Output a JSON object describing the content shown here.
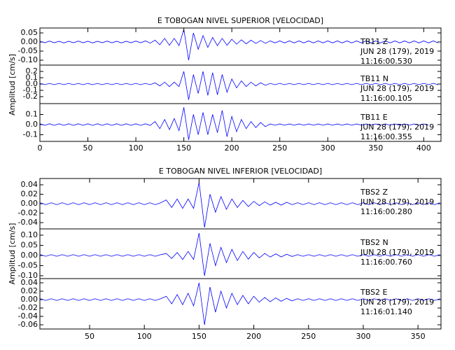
{
  "chart_data": [
    {
      "type": "line",
      "title": "E TOBOGAN NIVEL SUPERIOR [VELOCIDAD]",
      "ylabel": "Amplitud [cm/s]",
      "xlim": [
        0,
        418
      ],
      "xticks": [
        0,
        50,
        100,
        150,
        200,
        250,
        300,
        350,
        400
      ],
      "x": [
        0,
        5,
        10,
        15,
        20,
        25,
        30,
        35,
        40,
        45,
        50,
        55,
        60,
        65,
        70,
        75,
        80,
        85,
        90,
        95,
        100,
        105,
        110,
        115,
        120,
        125,
        130,
        135,
        140,
        145,
        150,
        155,
        160,
        165,
        170,
        175,
        180,
        185,
        190,
        195,
        200,
        205,
        210,
        215,
        220,
        225,
        230,
        235,
        240,
        245,
        250,
        255,
        260,
        265,
        270,
        275,
        280,
        285,
        290,
        295,
        300,
        305,
        310,
        315,
        320,
        325,
        330,
        335,
        340,
        345,
        350,
        355,
        360,
        365,
        370,
        375,
        380,
        385,
        390,
        395,
        400,
        405,
        410,
        415
      ],
      "panels": [
        {
          "ylim": [
            -0.127,
            0.077
          ],
          "yticks": [
            0.05,
            {
              "value": 0,
              "label": "0.00"
            },
            -0.05,
            {
              "value": -0.1,
              "label": "-0.10"
            }
          ],
          "labels": [
            "TB11   Z",
            "JUN 28 (179), 2019",
            "11:16:00.530"
          ],
          "series": [
            {
              "color": "#0000ff",
              "values": [
                0.004,
                -0.004,
                0.005,
                -0.004,
                0.004,
                -0.005,
                0.004,
                -0.004,
                0.005,
                -0.004,
                0.004,
                -0.005,
                0.004,
                -0.004,
                0.005,
                -0.004,
                0.004,
                -0.005,
                0.004,
                -0.004,
                0.005,
                -0.004,
                0.006,
                -0.006,
                0.01,
                -0.015,
                0.02,
                -0.018,
                0.02,
                -0.02,
                0.07,
                -0.1,
                0.05,
                -0.04,
                0.035,
                -0.03,
                0.025,
                -0.02,
                0.02,
                -0.018,
                0.015,
                -0.012,
                0.012,
                -0.01,
                0.01,
                -0.008,
                0.008,
                -0.007,
                0.006,
                -0.005,
                0.006,
                -0.005,
                0.006,
                -0.005,
                0.006,
                -0.005,
                0.006,
                -0.005,
                0.006,
                -0.005,
                0.006,
                -0.005,
                0.006,
                -0.005,
                0.006,
                -0.005,
                0.006,
                -0.005,
                0.006,
                -0.005,
                0.006,
                -0.005,
                0.006,
                -0.005,
                0.006,
                -0.005,
                0.006,
                -0.005,
                0.006,
                -0.005,
                0.006,
                -0.005,
                0.006,
                -0.005
              ]
            }
          ]
        },
        {
          "ylim": [
            -0.31,
            0.3
          ],
          "yticks": [
            0.2,
            0.1,
            {
              "value": 0,
              "label": "0.0"
            },
            -0.1,
            -0.2
          ],
          "labels": [
            "TB11   N",
            "JUN 28 (179), 2019",
            "11:16:00.105"
          ],
          "series": [
            {
              "color": "#0000ff",
              "values": [
                0.01,
                -0.01,
                0.01,
                -0.01,
                0.01,
                -0.01,
                0.01,
                -0.01,
                0.01,
                -0.01,
                0.01,
                -0.01,
                0.01,
                -0.01,
                0.01,
                -0.01,
                0.01,
                -0.01,
                0.01,
                -0.01,
                0.01,
                -0.01,
                0.01,
                -0.01,
                0.02,
                -0.03,
                0.03,
                -0.04,
                0.03,
                -0.04,
                0.2,
                -0.25,
                0.15,
                -0.15,
                0.2,
                -0.18,
                0.18,
                -0.17,
                0.15,
                -0.13,
                0.08,
                -0.06,
                0.05,
                -0.04,
                0.03,
                -0.03,
                0.02,
                -0.02,
                0.01,
                -0.01,
                0.01,
                -0.01,
                0.01,
                -0.01,
                0.01,
                -0.01,
                0.01,
                -0.01,
                0.01,
                -0.01,
                0.01,
                -0.01,
                0.01,
                -0.01,
                0.01,
                -0.01,
                0.01,
                -0.01,
                0.01,
                -0.01,
                0.01,
                -0.01,
                0.01,
                -0.01,
                0.01,
                -0.01,
                0.01,
                -0.01,
                0.01,
                -0.01,
                0.01,
                -0.01,
                0.01,
                -0.01
              ]
            }
          ]
        },
        {
          "ylim": [
            -0.166,
            0.207
          ],
          "yticks": [
            0.1,
            {
              "value": 0,
              "label": "0.0"
            },
            -0.1
          ],
          "labels": [
            "TB11   E",
            "JUN 28 (179), 2019",
            "11:16:00.355"
          ],
          "series": [
            {
              "color": "#0000ff",
              "values": [
                0.008,
                -0.008,
                0.008,
                -0.008,
                0.008,
                -0.008,
                0.008,
                -0.008,
                0.008,
                -0.008,
                0.008,
                -0.008,
                0.008,
                -0.008,
                0.008,
                -0.008,
                0.008,
                -0.008,
                0.008,
                -0.008,
                0.008,
                -0.008,
                0.008,
                -0.008,
                0.03,
                -0.04,
                0.05,
                -0.05,
                0.06,
                -0.06,
                0.17,
                -0.15,
                0.1,
                -0.1,
                0.12,
                -0.1,
                0.1,
                -0.08,
                0.14,
                -0.12,
                0.08,
                -0.07,
                0.05,
                -0.04,
                0.03,
                -0.03,
                0.02,
                -0.02,
                0.006,
                -0.006,
                0.006,
                -0.006,
                0.006,
                -0.006,
                0.006,
                -0.006,
                0.006,
                -0.006,
                0.006,
                -0.006,
                0.006,
                -0.006,
                0.006,
                -0.006,
                0.006,
                -0.006,
                0.006,
                -0.006,
                0.006,
                -0.006,
                0.006,
                -0.006,
                0.006,
                -0.006,
                0.006,
                -0.006,
                0.006,
                -0.006,
                0.006,
                -0.006,
                0.006,
                -0.006
              ]
            }
          ]
        }
      ]
    },
    {
      "type": "line",
      "title": "E TOBOGAN NIVEL INFERIOR [VELOCIDAD]",
      "ylabel": "Amplitud [cm/s]",
      "xlim": [
        4.6,
        371
      ],
      "xticks": [
        50,
        100,
        150,
        200,
        250,
        300,
        350
      ],
      "x": [
        5,
        10,
        15,
        20,
        25,
        30,
        35,
        40,
        45,
        50,
        55,
        60,
        65,
        70,
        75,
        80,
        85,
        90,
        95,
        100,
        105,
        110,
        115,
        120,
        125,
        130,
        135,
        140,
        145,
        150,
        155,
        160,
        165,
        170,
        175,
        180,
        185,
        190,
        195,
        200,
        205,
        210,
        215,
        220,
        225,
        230,
        235,
        240,
        245,
        250,
        255,
        260,
        265,
        270,
        275,
        280,
        285,
        290,
        295,
        300,
        305,
        310,
        315,
        320,
        325,
        330,
        335,
        340,
        345,
        350,
        355,
        360,
        365,
        370
      ],
      "panels": [
        {
          "ylim": [
            -0.0533,
            0.0533
          ],
          "yticks": [
            0.04,
            0.02,
            {
              "value": 0,
              "label": "0.00"
            },
            -0.02,
            -0.04
          ],
          "labels": [
            "TBS2   Z",
            "JUN 28 (179), 2019",
            "11:16:00.280"
          ],
          "series": [
            {
              "color": "#0000ff",
              "values": [
                0.002,
                -0.002,
                0.002,
                -0.002,
                0.002,
                -0.002,
                0.002,
                -0.002,
                0.002,
                -0.002,
                0.002,
                -0.002,
                0.002,
                -0.002,
                0.002,
                -0.002,
                0.002,
                -0.002,
                0.002,
                -0.002,
                0.002,
                -0.002,
                0.002,
                0.008,
                -0.008,
                0.01,
                -0.01,
                0.01,
                -0.01,
                0.045,
                -0.05,
                0.02,
                -0.018,
                0.015,
                -0.012,
                0.01,
                -0.008,
                0.007,
                -0.006,
                0.005,
                -0.004,
                0.004,
                -0.003,
                0.003,
                -0.003,
                0.003,
                -0.002,
                0.002,
                -0.002,
                0.002,
                -0.002,
                0.002,
                -0.002,
                0.002,
                -0.002,
                0.002,
                -0.002,
                0.002,
                -0.002,
                0.002,
                -0.002,
                0.002,
                -0.002,
                0.002,
                -0.002,
                0.002,
                -0.002,
                0.002,
                -0.002,
                0.002,
                -0.002,
                0.002,
                -0.002,
                0.002
              ]
            }
          ]
        },
        {
          "ylim": [
            -0.114,
            0.131
          ],
          "yticks": [
            {
              "value": 0.1,
              "label": "0.10"
            },
            0.05,
            {
              "value": 0,
              "label": "0.00"
            },
            -0.05,
            {
              "value": -0.1,
              "label": "-0.10"
            }
          ],
          "labels": [
            "TBS2   N",
            "JUN 28 (179), 2019",
            "11:16:00.760"
          ],
          "series": [
            {
              "color": "#0000ff",
              "values": [
                0.004,
                -0.004,
                0.004,
                -0.004,
                0.004,
                -0.004,
                0.004,
                -0.004,
                0.004,
                -0.004,
                0.004,
                -0.004,
                0.004,
                -0.004,
                0.004,
                -0.004,
                0.004,
                -0.004,
                0.004,
                -0.004,
                0.004,
                -0.004,
                0.004,
                0.01,
                -0.015,
                0.015,
                -0.02,
                0.02,
                -0.02,
                0.11,
                -0.1,
                0.06,
                -0.05,
                0.04,
                -0.035,
                0.03,
                -0.025,
                0.02,
                -0.018,
                0.015,
                -0.012,
                0.01,
                -0.008,
                0.008,
                -0.007,
                0.006,
                -0.005,
                0.004,
                -0.004,
                0.004,
                -0.004,
                0.004,
                -0.004,
                0.004,
                -0.004,
                0.004,
                -0.004,
                0.004,
                -0.004,
                0.004,
                -0.004,
                0.004,
                -0.004,
                0.004,
                -0.004,
                0.004,
                -0.004,
                0.004,
                -0.004,
                0.004,
                -0.004,
                0.004,
                -0.004,
                0.004
              ]
            }
          ]
        },
        {
          "ylim": [
            -0.07,
            0.05
          ],
          "yticks": [
            0.04,
            0.02,
            {
              "value": 0,
              "label": "0.00"
            },
            -0.02,
            -0.04,
            -0.06
          ],
          "labels": [
            "TBS2   E",
            "JUN 28 (179), 2019",
            "11:16:01.140"
          ],
          "series": [
            {
              "color": "#0000ff",
              "values": [
                0.002,
                -0.002,
                0.002,
                -0.002,
                0.002,
                -0.002,
                0.002,
                -0.002,
                0.002,
                -0.002,
                0.002,
                -0.002,
                0.002,
                -0.002,
                0.002,
                -0.002,
                0.002,
                -0.002,
                0.002,
                -0.002,
                0.002,
                -0.002,
                0.002,
                0.008,
                -0.01,
                0.012,
                -0.012,
                0.015,
                -0.015,
                0.04,
                -0.06,
                0.03,
                -0.03,
                0.02,
                -0.02,
                0.015,
                -0.012,
                0.01,
                -0.01,
                0.008,
                -0.006,
                0.005,
                -0.005,
                0.004,
                -0.004,
                0.003,
                -0.003,
                0.002,
                -0.002,
                0.002,
                -0.002,
                0.002,
                -0.002,
                0.002,
                -0.002,
                0.002,
                -0.002,
                0.002,
                -0.002,
                0.002,
                -0.002,
                0.002,
                -0.002,
                0.002,
                -0.002,
                0.002,
                -0.002,
                0.002,
                -0.002,
                0.002,
                -0.002,
                0.002,
                -0.002,
                0.002
              ]
            }
          ]
        }
      ]
    }
  ]
}
